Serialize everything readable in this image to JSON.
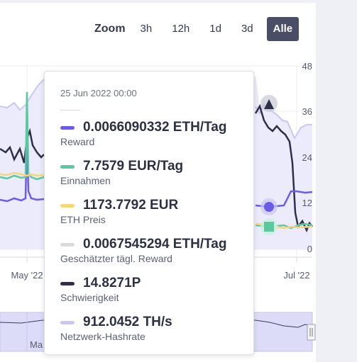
{
  "zoom": {
    "label": "Zoom",
    "options": [
      "3h",
      "12h",
      "1d",
      "3d",
      "Alle"
    ],
    "selected": "Alle"
  },
  "chart": {
    "y_ticks": [
      "48",
      "36",
      "24",
      "12",
      "0"
    ],
    "x_ticks": [
      "May '22",
      "Jul '22"
    ],
    "navigator_label": "Ma"
  },
  "tooltip": {
    "date": "25 Jun 2022 00:00",
    "rows": [
      {
        "value": "0.0066090332 ETH/Tag",
        "name": "Reward",
        "color": "#6b5ce7"
      },
      {
        "value": "7.7579 EUR/Tag",
        "name": "Einnahmen",
        "color": "#5cc8a0"
      },
      {
        "value": "1173.7792 EUR",
        "name": "ETH Preis",
        "color": "#f5d67a"
      },
      {
        "value": "0.0067545294 ETH/Tag",
        "name": "Geschätzter tägl. Reward",
        "color": "#d9dbe0"
      },
      {
        "value": "14.8271P",
        "name": "Schwierigkeit",
        "color": "#2e2f4a"
      },
      {
        "value": "912.0452 TH/s",
        "name": "Netzwerk-Hashrate",
        "color": "#c9c8f2"
      }
    ]
  }
}
